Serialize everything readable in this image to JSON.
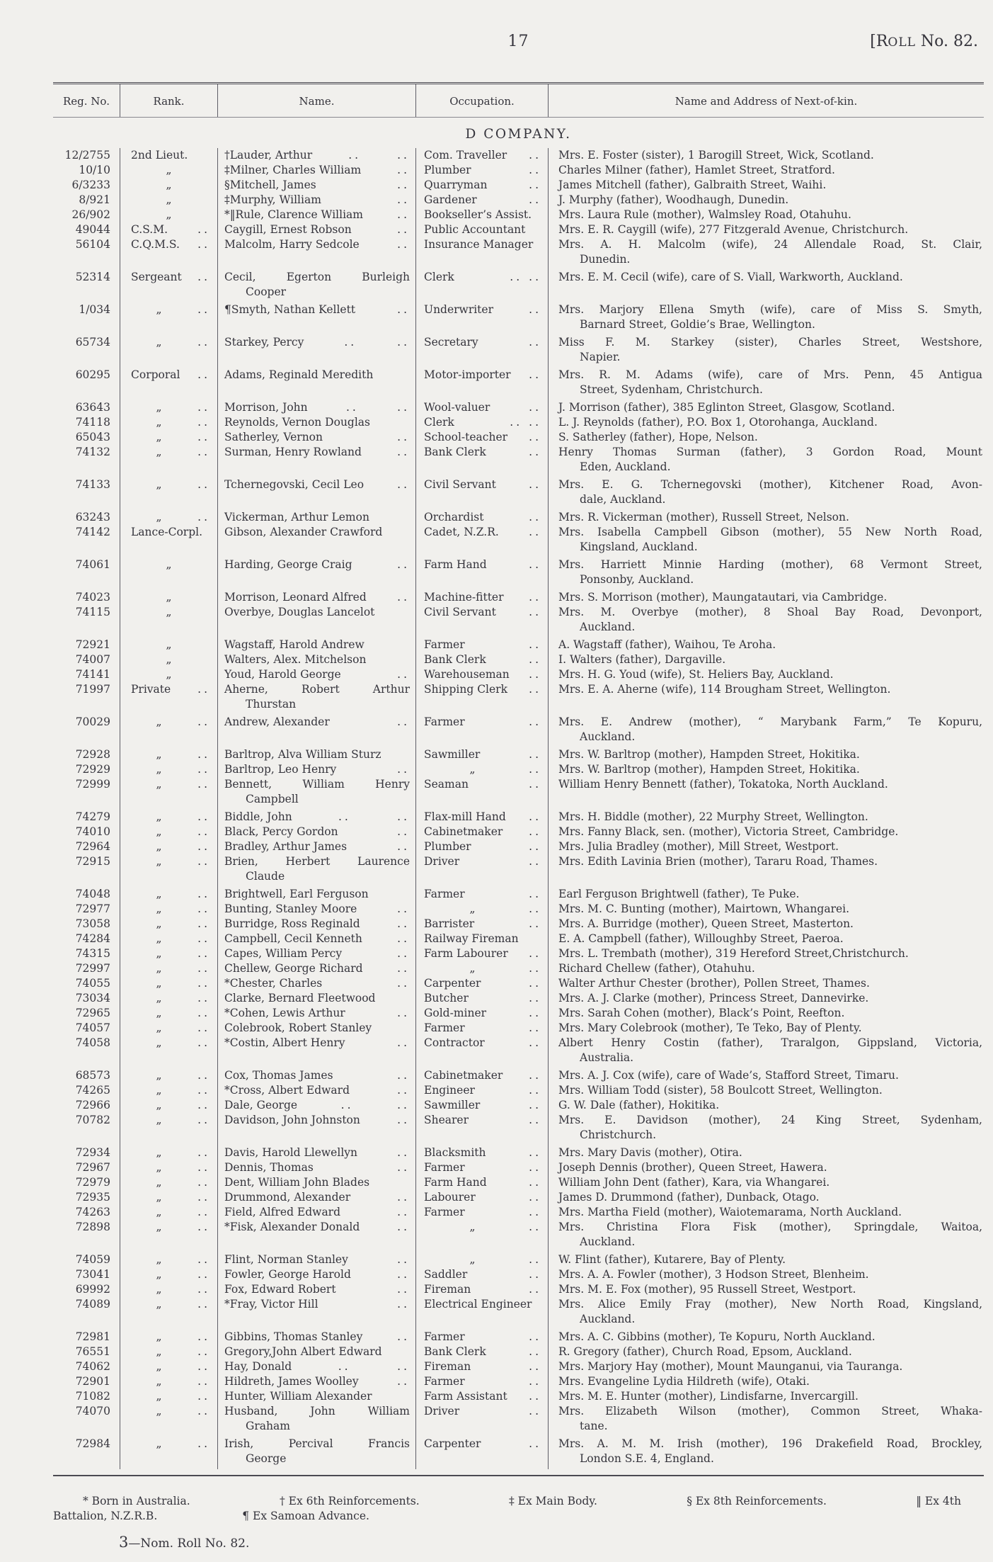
{
  "header": {
    "page_number": "17",
    "roll_parts": {
      "prefix": "[R",
      "small": "OLL",
      "rest": " No. 82."
    }
  },
  "table": {
    "headers": [
      "Reg. No.",
      "Rank.",
      "Name.",
      "Occupation.",
      "Name and Address of Next-of-kin."
    ],
    "company_heading": "D COMPANY."
  },
  "rows": [
    {
      "reg": "12/2755",
      "rank": "2nd Lieut.",
      "rank_dots": "",
      "name": "†Lauder, Arthur",
      "name_dots": ".. ..",
      "occ": "Com. Traveller",
      "occ_dots": "..",
      "kin": "Mrs. E. Foster (sister), 1 Barogill Street, Wick, Scotland."
    },
    {
      "reg": "10/10",
      "rank": "„",
      "rank_dots": "",
      "name": "‡Milner, Charles William",
      "name_dots": "..",
      "occ": "Plumber",
      "occ_dots": "..",
      "kin": "Charles Milner (father), Hamlet Street, Stratford."
    },
    {
      "reg": "6/3233",
      "rank": "„",
      "rank_dots": "",
      "name": "§Mitchell, James",
      "name_dots": "..",
      "occ": "Quarryman",
      "occ_dots": "..",
      "kin": "James Mitchell (father), Galbraith Street, Waihi."
    },
    {
      "reg": "8/921",
      "rank": "„",
      "rank_dots": "",
      "name": "‡Murphy, William",
      "name_dots": "..",
      "occ": "Gardener",
      "occ_dots": "..",
      "kin": "J. Murphy (father), Woodhaugh, Dunedin."
    },
    {
      "reg": "26/902",
      "rank": "„",
      "rank_dots": "",
      "name": "*‖Rule, Clarence William",
      "name_dots": "..",
      "occ": "Bookseller’s Assist.",
      "occ_dots": "",
      "kin": "Mrs. Laura Rule (mother), Walmsley Road, Otahuhu."
    },
    {
      "reg": "49044",
      "rank": "C.S.M.",
      "rank_dots": "..",
      "name": "Caygill, Ernest Robson",
      "name_dots": "..",
      "occ": "Public Accountant",
      "occ_dots": "",
      "kin": "Mrs. E. R. Caygill (wife), 277 Fitzgerald Avenue, Christchurch."
    },
    {
      "reg": "56104",
      "rank": "C.Q.M.S.",
      "rank_dots": "..",
      "name": "Malcolm, Harry Sedcole",
      "name_dots": "..",
      "occ": "Insurance Manager",
      "occ_dots": "",
      "kin": "Mrs. A. H. Malcolm (wife), 24 Allendale Road, St. Clair,",
      "kin2": "Dunedin."
    },
    {
      "reg": "52314",
      "rank": "Sergeant",
      "rank_dots": "..",
      "name": "Cecil, Egerton Burleigh",
      "name2": "Cooper",
      "name_dots": "",
      "occ": "Clerk",
      "occ_dots": ".. ..",
      "kin": "Mrs. E. M. Cecil (wife), care of S. Viall, Warkworth, Auckland."
    },
    {
      "reg": "1/034",
      "rank": "„",
      "rank_dots": "..",
      "name": "¶Smyth, Nathan Kellett",
      "name_dots": "..",
      "occ": "Underwriter",
      "occ_dots": "..",
      "kin": "Mrs. Marjory Ellena Smyth (wife), care of Miss S. Smyth,",
      "kin2": "Barnard Street, Goldie’s Brae, Wellington."
    },
    {
      "reg": "65734",
      "rank": "„",
      "rank_dots": "..",
      "name": "Starkey, Percy",
      "name_dots": ".. ..",
      "occ": "Secretary",
      "occ_dots": "..",
      "kin": "Miss F. M. Starkey (sister), Charles Street, Westshore,",
      "kin2": "Napier."
    },
    {
      "reg": "60295",
      "rank": "Corporal",
      "rank_dots": "..",
      "name": "Adams, Reginald Meredith",
      "name_dots": "",
      "occ": "Motor-importer",
      "occ_dots": "..",
      "kin": "Mrs. R. M. Adams (wife), care of Mrs. Penn, 45 Antigua",
      "kin2": "Street, Sydenham, Christchurch."
    },
    {
      "reg": "63643",
      "rank": "„",
      "rank_dots": "..",
      "name": "Morrison, John",
      "name_dots": ".. ..",
      "occ": "Wool-valuer",
      "occ_dots": "..",
      "kin": "J. Morrison (father), 385 Eglinton Street, Glasgow, Scotland."
    },
    {
      "reg": "74118",
      "rank": "„",
      "rank_dots": "..",
      "name": "Reynolds, Vernon Douglas",
      "name_dots": "",
      "occ": "Clerk",
      "occ_dots": ".. ..",
      "kin": "L. J. Reynolds (father), P.O. Box 1, Otorohanga, Auckland."
    },
    {
      "reg": "65043",
      "rank": "„",
      "rank_dots": "..",
      "name": "Satherley, Vernon",
      "name_dots": "..",
      "occ": "School-teacher",
      "occ_dots": "..",
      "kin": "S. Satherley (father), Hope, Nelson."
    },
    {
      "reg": "74132",
      "rank": "„",
      "rank_dots": "..",
      "name": "Surman, Henry Rowland",
      "name_dots": "..",
      "occ": "Bank Clerk",
      "occ_dots": "..",
      "kin": "Henry Thomas Surman (father), 3 Gordon Road, Mount",
      "kin2": "Eden, Auckland."
    },
    {
      "reg": "74133",
      "rank": "„",
      "rank_dots": "..",
      "name": "Tchernegovski, Cecil Leo",
      "name_dots": "..",
      "occ": "Civil Servant",
      "occ_dots": "..",
      "kin": "Mrs. E. G. Tchernegovski (mother), Kitchener Road, Avon-",
      "kin2": "dale, Auckland."
    },
    {
      "reg": "63243",
      "rank": "„",
      "rank_dots": "..",
      "name": "Vickerman, Arthur Lemon",
      "name_dots": "",
      "occ": "Orchardist",
      "occ_dots": "..",
      "kin": "Mrs. R. Vickerman (mother), Russell Street, Nelson."
    },
    {
      "reg": "74142",
      "rank": "Lance-Corpl.",
      "rank_dots": "",
      "name": "Gibson, Alexander Crawford",
      "name_dots": "",
      "occ": "Cadet, N.Z.R.",
      "occ_dots": "..",
      "kin": "Mrs. Isabella Campbell Gibson (mother), 55 New North Road,",
      "kin2": "Kingsland, Auckland."
    },
    {
      "reg": "74061",
      "rank": "„",
      "rank_dots": "",
      "name": "Harding, George Craig",
      "name_dots": "..",
      "occ": "Farm Hand",
      "occ_dots": "..",
      "kin": "Mrs. Harriett Minnie Harding (mother), 68 Vermont Street,",
      "kin2": "Ponsonby, Auckland."
    },
    {
      "reg": "74023",
      "rank": "„",
      "rank_dots": "",
      "name": "Morrison, Leonard Alfred",
      "name_dots": "..",
      "occ": "Machine-fitter",
      "occ_dots": "..",
      "kin": "Mrs. S. Morrison (mother), Maungatautari, via Cambridge."
    },
    {
      "reg": "74115",
      "rank": "„",
      "rank_dots": "",
      "name": "Overbye, Douglas Lancelot",
      "name_dots": "",
      "occ": "Civil Servant",
      "occ_dots": "..",
      "kin": "Mrs. M. Overbye (mother), 8 Shoal Bay Road, Devonport,",
      "kin2": "Auckland."
    },
    {
      "reg": "72921",
      "rank": "„",
      "rank_dots": "",
      "name": "Wagstaff, Harold Andrew",
      "name_dots": "",
      "occ": "Farmer",
      "occ_dots": "..",
      "kin": "A. Wagstaff (father), Waihou, Te Aroha."
    },
    {
      "reg": "74007",
      "rank": "„",
      "rank_dots": "",
      "name": "Walters, Alex. Mitchelson",
      "name_dots": "",
      "occ": "Bank Clerk",
      "occ_dots": "..",
      "kin": "I. Walters (father), Dargaville."
    },
    {
      "reg": "74141",
      "rank": "„",
      "rank_dots": "",
      "name": "Youd, Harold George",
      "name_dots": "..",
      "occ": "Warehouseman",
      "occ_dots": "..",
      "kin": "Mrs. H. G. Youd (wife), St. Heliers Bay, Auckland."
    },
    {
      "reg": "71997",
      "rank": "Private",
      "rank_dots": "..",
      "name": "Aherne, Robert Arthur",
      "name2": "Thurstan",
      "name_dots": "",
      "occ": "Shipping Clerk",
      "occ_dots": "..",
      "kin": "Mrs. E. A. Aherne (wife), 114 Brougham Street, Wellington."
    },
    {
      "reg": "70029",
      "rank": "„",
      "rank_dots": "..",
      "name": "Andrew, Alexander",
      "name_dots": "..",
      "occ": "Farmer",
      "occ_dots": "..",
      "kin": "Mrs. E. Andrew (mother), “ Marybank Farm,” Te Kopuru,",
      "kin2": "Auckland."
    },
    {
      "reg": "72928",
      "rank": "„",
      "rank_dots": "..",
      "name": "Barltrop, Alva William Sturz",
      "name_dots": "",
      "occ": "Sawmiller",
      "occ_dots": "..",
      "kin": "Mrs. W. Barltrop (mother), Hampden Street, Hokitika."
    },
    {
      "reg": "72929",
      "rank": "„",
      "rank_dots": "..",
      "name": "Barltrop, Leo Henry",
      "name_dots": "..",
      "occ": "„",
      "occ_dots": "..",
      "kin": "Mrs. W. Barltrop (mother), Hampden Street, Hokitika."
    },
    {
      "reg": "72999",
      "rank": "„",
      "rank_dots": "..",
      "name": "Bennett, William Henry",
      "name2": "Campbell",
      "name_dots": "",
      "occ": "Seaman",
      "occ_dots": "..",
      "kin": "William Henry Bennett (father), Tokatoka, North Auckland."
    },
    {
      "reg": "74279",
      "rank": "„",
      "rank_dots": "..",
      "name": "Biddle, John",
      "name_dots": ".. ..",
      "occ": "Flax-mill Hand",
      "occ_dots": "..",
      "kin": "Mrs. H. Biddle (mother), 22 Murphy Street, Wellington."
    },
    {
      "reg": "74010",
      "rank": "„",
      "rank_dots": "..",
      "name": "Black, Percy Gordon",
      "name_dots": "..",
      "occ": "Cabinetmaker",
      "occ_dots": "..",
      "kin": "Mrs. Fanny Black, sen. (mother), Victoria Street, Cambridge."
    },
    {
      "reg": "72964",
      "rank": "„",
      "rank_dots": "..",
      "name": "Bradley, Arthur James",
      "name_dots": "..",
      "occ": "Plumber",
      "occ_dots": "..",
      "kin": "Mrs. Julia Bradley (mother), Mill Street, Westport."
    },
    {
      "reg": "72915",
      "rank": "„",
      "rank_dots": "..",
      "name": "Brien, Herbert Laurence",
      "name2": "Claude",
      "name_dots": "",
      "occ": "Driver",
      "occ_dots": "..",
      "kin": "Mrs. Edith Lavinia Brien (mother), Tararu Road, Thames."
    },
    {
      "reg": "74048",
      "rank": "„",
      "rank_dots": "..",
      "name": "Brightwell, Earl Ferguson",
      "name_dots": "",
      "occ": "Farmer",
      "occ_dots": "..",
      "kin": "Earl Ferguson Brightwell (father), Te Puke."
    },
    {
      "reg": "72977",
      "rank": "„",
      "rank_dots": "..",
      "name": "Bunting, Stanley Moore",
      "name_dots": "..",
      "occ": "„",
      "occ_dots": "..",
      "kin": "Mrs. M. C. Bunting (mother), Mairtown, Whangarei."
    },
    {
      "reg": "73058",
      "rank": "„",
      "rank_dots": "..",
      "name": "Burridge, Ross Reginald",
      "name_dots": "..",
      "occ": "Barrister",
      "occ_dots": "..",
      "kin": "Mrs. A. Burridge (mother), Queen Street, Masterton."
    },
    {
      "reg": "74284",
      "rank": "„",
      "rank_dots": "..",
      "name": "Campbell, Cecil Kenneth",
      "name_dots": "..",
      "occ": "Railway Fireman",
      "occ_dots": "",
      "kin": "E. A. Campbell (father), Willoughby Street, Paeroa."
    },
    {
      "reg": "74315",
      "rank": "„",
      "rank_dots": "..",
      "name": "Capes, William Percy",
      "name_dots": "..",
      "occ": "Farm Labourer",
      "occ_dots": "..",
      "kin": "Mrs. L. Trembath (mother), 319 Hereford Street,Christchurch."
    },
    {
      "reg": "72997",
      "rank": "„",
      "rank_dots": "..",
      "name": "Chellew, George Richard",
      "name_dots": "..",
      "occ": "„",
      "occ_dots": "..",
      "kin": "Richard Chellew (father), Otahuhu."
    },
    {
      "reg": "74055",
      "rank": "„",
      "rank_dots": "..",
      "name": "*Chester, Charles",
      "name_dots": "..",
      "occ": "Carpenter",
      "occ_dots": "..",
      "kin": "Walter Arthur Chester (brother), Pollen Street, Thames."
    },
    {
      "reg": "73034",
      "rank": "„",
      "rank_dots": "..",
      "name": "Clarke, Bernard Fleetwood",
      "name_dots": "",
      "occ": "Butcher",
      "occ_dots": "..",
      "kin": "Mrs. A. J. Clarke (mother), Princess Street, Dannevirke."
    },
    {
      "reg": "72965",
      "rank": "„",
      "rank_dots": "..",
      "name": "*Cohen, Lewis Arthur",
      "name_dots": "..",
      "occ": "Gold-miner",
      "occ_dots": "..",
      "kin": "Mrs. Sarah Cohen (mother), Black’s Point, Reefton."
    },
    {
      "reg": "74057",
      "rank": "„",
      "rank_dots": "..",
      "name": "Colebrook, Robert Stanley",
      "name_dots": "",
      "occ": "Farmer",
      "occ_dots": "..",
      "kin": "Mrs. Mary Colebrook (mother), Te Teko, Bay of Plenty."
    },
    {
      "reg": "74058",
      "rank": "„",
      "rank_dots": "..",
      "name": "*Costin, Albert Henry",
      "name_dots": "..",
      "occ": "Contractor",
      "occ_dots": "..",
      "kin": "Albert Henry Costin (father), Traralgon, Gippsland, Victoria,",
      "kin2": "Australia."
    },
    {
      "reg": "68573",
      "rank": "„",
      "rank_dots": "..",
      "name": "Cox, Thomas James",
      "name_dots": "..",
      "occ": "Cabinetmaker",
      "occ_dots": "..",
      "kin": "Mrs. A. J. Cox (wife), care of Wade’s, Stafford Street, Timaru."
    },
    {
      "reg": "74265",
      "rank": "„",
      "rank_dots": "..",
      "name": "*Cross, Albert Edward",
      "name_dots": "..",
      "occ": "Engineer",
      "occ_dots": "..",
      "kin": "Mrs. William Todd (sister), 58 Boulcott Street, Wellington."
    },
    {
      "reg": "72966",
      "rank": "„",
      "rank_dots": "..",
      "name": "Dale, George",
      "name_dots": ".. ..",
      "occ": "Sawmiller",
      "occ_dots": "..",
      "kin": "G. W. Dale (father), Hokitika."
    },
    {
      "reg": "70782",
      "rank": "„",
      "rank_dots": "..",
      "name": "Davidson, John Johnston",
      "name_dots": "..",
      "occ": "Shearer",
      "occ_dots": "..",
      "kin": "Mrs. E. Davidson (mother), 24 King Street, Sydenham,",
      "kin2": "Christchurch."
    },
    {
      "reg": "72934",
      "rank": "„",
      "rank_dots": "..",
      "name": "Davis, Harold Llewellyn",
      "name_dots": "..",
      "occ": "Blacksmith",
      "occ_dots": "..",
      "kin": "Mrs. Mary Davis (mother), Otira."
    },
    {
      "reg": "72967",
      "rank": "„",
      "rank_dots": "..",
      "name": "Dennis, Thomas",
      "name_dots": "..",
      "occ": "Farmer",
      "occ_dots": "..",
      "kin": "Joseph Dennis (brother), Queen Street, Hawera."
    },
    {
      "reg": "72979",
      "rank": "„",
      "rank_dots": "..",
      "name": "Dent, William John Blades",
      "name_dots": "",
      "occ": "Farm Hand",
      "occ_dots": "..",
      "kin": "William John Dent (father), Kara, via Whangarei."
    },
    {
      "reg": "72935",
      "rank": "„",
      "rank_dots": "..",
      "name": "Drummond, Alexander",
      "name_dots": "..",
      "occ": "Labourer",
      "occ_dots": "..",
      "kin": "James D. Drummond (father), Dunback, Otago."
    },
    {
      "reg": "74263",
      "rank": "„",
      "rank_dots": "..",
      "name": "Field, Alfred Edward",
      "name_dots": "..",
      "occ": "Farmer",
      "occ_dots": "..",
      "kin": "Mrs. Martha Field (mother), Waiotemarama, North Auckland."
    },
    {
      "reg": "72898",
      "rank": "„",
      "rank_dots": "..",
      "name": "*Fisk, Alexander Donald",
      "name_dots": "..",
      "occ": "„",
      "occ_dots": "..",
      "kin": "Mrs. Christina Flora Fisk (mother), Springdale, Waitoa,",
      "kin2": "Auckland."
    },
    {
      "reg": "74059",
      "rank": "„",
      "rank_dots": "..",
      "name": "Flint, Norman Stanley",
      "name_dots": "..",
      "occ": "„",
      "occ_dots": "..",
      "kin": "W. Flint (father), Kutarere, Bay of Plenty."
    },
    {
      "reg": "73041",
      "rank": "„",
      "rank_dots": "..",
      "name": "Fowler, George Harold",
      "name_dots": "..",
      "occ": "Saddler",
      "occ_dots": "..",
      "kin": "Mrs. A. A. Fowler (mother), 3 Hodson Street, Blenheim."
    },
    {
      "reg": "69992",
      "rank": "„",
      "rank_dots": "..",
      "name": "Fox, Edward Robert",
      "name_dots": "..",
      "occ": "Fireman",
      "occ_dots": "..",
      "kin": "Mrs. M. E. Fox (mother), 95 Russell Street, Westport."
    },
    {
      "reg": "74089",
      "rank": "„",
      "rank_dots": "..",
      "name": "*Fray, Victor Hill",
      "name_dots": "..",
      "occ": "Electrical Engineer",
      "occ_dots": "",
      "kin": "Mrs. Alice Emily Fray (mother), New North Road, Kingsland,",
      "kin2": "Auckland."
    },
    {
      "reg": "72981",
      "rank": "„",
      "rank_dots": "..",
      "name": "Gibbins, Thomas Stanley",
      "name_dots": "..",
      "occ": "Farmer",
      "occ_dots": "..",
      "kin": "Mrs. A. C. Gibbins (mother), Te Kopuru, North Auckland."
    },
    {
      "reg": "76551",
      "rank": "„",
      "rank_dots": "..",
      "name": "Gregory,John Albert Edward",
      "name_dots": "",
      "occ": "Bank Clerk",
      "occ_dots": "..",
      "kin": "R. Gregory (father), Church Road, Epsom, Auckland."
    },
    {
      "reg": "74062",
      "rank": "„",
      "rank_dots": "..",
      "name": "Hay, Donald",
      "name_dots": ".. ..",
      "occ": "Fireman",
      "occ_dots": "..",
      "kin": "Mrs. Marjory Hay (mother), Mount Maunganui, via Tauranga."
    },
    {
      "reg": "72901",
      "rank": "„",
      "rank_dots": "..",
      "name": "Hildreth, James Woolley",
      "name_dots": "..",
      "occ": "Farmer",
      "occ_dots": "..",
      "kin": "Mrs. Evangeline Lydia Hildreth (wife), Otaki."
    },
    {
      "reg": "71082",
      "rank": "„",
      "rank_dots": "..",
      "name": "Hunter, William Alexander",
      "name_dots": "",
      "occ": "Farm Assistant",
      "occ_dots": "..",
      "kin": "Mrs. M. E. Hunter (mother), Lindisfarne, Invercargill."
    },
    {
      "reg": "74070",
      "rank": "„",
      "rank_dots": "..",
      "name": "Husband, John William",
      "name2": "Graham",
      "name_dots": "",
      "occ": "Driver",
      "occ_dots": "..",
      "kin": "Mrs. Elizabeth Wilson (mother), Common Street, Whaka-",
      "kin2": "tane."
    },
    {
      "reg": "72984",
      "rank": "„",
      "rank_dots": "..",
      "name": "Irish, Percival Francis",
      "name2": "George",
      "name_dots": "",
      "occ": "Carpenter",
      "occ_dots": "..",
      "kin": "Mrs. A. M. M. Irish (mother), 196 Drakefield Road, Brockley,",
      "kin2": "London S.E. 4, England."
    }
  ],
  "footnotes": {
    "line1": [
      "* Born in Australia.",
      "† Ex 6th Reinforcements.",
      "‡ Ex Main Body.",
      "§ Ex 8th Reinforcements.",
      "‖ Ex 4th"
    ],
    "line2": [
      "Battalion, N.Z.R.B.",
      "¶ Ex Samoan Advance."
    ]
  },
  "footer": {
    "nom_number": "3",
    "nom_rest": "—Nom. Roll No. 82."
  },
  "colors": {
    "paper": "#f1f0ed",
    "ink": "#35343c",
    "rule": "#4b4a52"
  }
}
